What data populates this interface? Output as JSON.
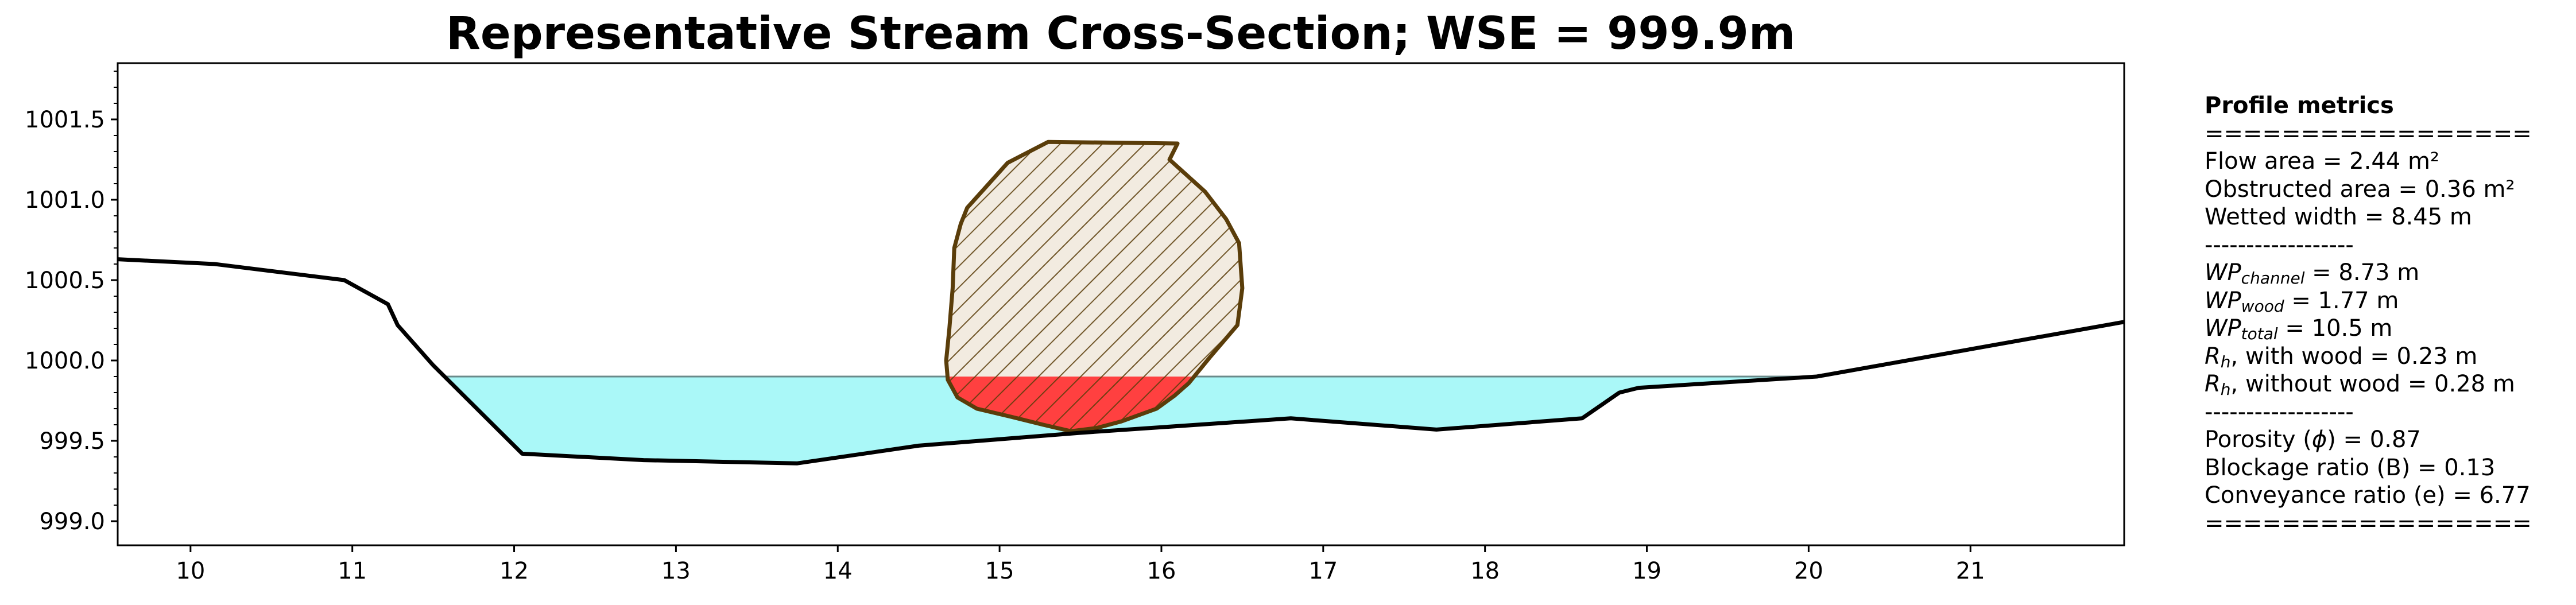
{
  "chart_data": {
    "type": "area",
    "title": "Representative Stream Cross-Section; WSE = 999.9m",
    "xlabel": "",
    "ylabel": "",
    "xlim": [
      9.55,
      21.95
    ],
    "ylim": [
      998.85,
      1001.85
    ],
    "x_ticks": [
      10,
      11,
      12,
      13,
      14,
      15,
      16,
      17,
      18,
      19,
      20,
      21
    ],
    "y_ticks": [
      999.0,
      999.5,
      1000.0,
      1000.5,
      1001.0,
      1001.5
    ],
    "y_tick_labels": [
      "999.0",
      "999.5",
      "1000.0",
      "1000.5",
      "1001.0",
      "1001.5"
    ],
    "grid": false,
    "legend": "none",
    "wse": 999.9,
    "series": [
      {
        "kind": "ground_profile",
        "color": "#000000",
        "x": [
          9.55,
          10.15,
          10.95,
          11.22,
          11.28,
          11.5,
          12.05,
          12.8,
          13.75,
          14.5,
          15.5,
          16.8,
          17.7,
          18.6,
          18.83,
          18.95,
          20.05,
          21.95
        ],
        "y": [
          1000.63,
          1000.6,
          1000.5,
          1000.35,
          1000.22,
          999.97,
          999.42,
          999.38,
          999.36,
          999.47,
          999.55,
          999.64,
          999.57,
          999.64,
          999.8,
          999.83,
          999.9,
          1000.24
        ]
      },
      {
        "kind": "water",
        "color": "#aaf8f8",
        "edge_color": "#6a8a8a"
      },
      {
        "kind": "wood_obstruction",
        "face_color": "#f2ebe0",
        "edge_color": "#5a3d0a",
        "submerged_color": "#ff4040",
        "x": [
          15.3,
          16.1,
          16.05,
          16.27,
          16.4,
          16.48,
          16.5,
          16.47,
          16.3,
          16.17,
          16.08,
          15.97,
          15.75,
          15.6,
          15.44,
          15.27,
          15.07,
          14.86,
          14.74,
          14.68,
          14.67,
          14.69,
          14.71,
          14.72,
          14.76,
          14.8,
          15.05
        ],
        "y": [
          1001.36,
          1001.35,
          1001.25,
          1001.05,
          1000.88,
          1000.73,
          1000.45,
          1000.22,
          1000.02,
          999.86,
          999.78,
          999.7,
          999.62,
          999.58,
          999.56,
          999.6,
          999.65,
          999.7,
          999.77,
          999.88,
          1000.0,
          1000.2,
          1000.45,
          1000.7,
          1000.85,
          1000.95,
          1001.23
        ]
      }
    ]
  },
  "metrics": {
    "heading": "Profile metrics",
    "separator_major": "=================",
    "separator_minor": "------------------",
    "flow_area": "Flow area = 2.44 m²",
    "obstructed_area": "Obstructed area = 0.36 m²",
    "wetted_width": "Wetted width = 8.45 m",
    "wp_channel": {
      "base": "WP",
      "sub": "channel",
      "rest": " = 8.73 m"
    },
    "wp_wood": {
      "base": "WP",
      "sub": "wood",
      "rest": " = 1.77 m"
    },
    "wp_total": {
      "base": "WP",
      "sub": "total",
      "rest": " = 10.5 m"
    },
    "rh_with": {
      "base": "R",
      "sub": "h",
      "rest": ", with wood = 0.23 m"
    },
    "rh_without": {
      "base": "R",
      "sub": "h",
      "rest": ", without wood = 0.28 m"
    },
    "porosity": {
      "pre": "Porosity (",
      "sym": "ϕ",
      "post": ") = 0.87"
    },
    "blockage": "Blockage ratio (B) = 0.13",
    "conveyance": "Conveyance ratio (e) = 6.77"
  }
}
